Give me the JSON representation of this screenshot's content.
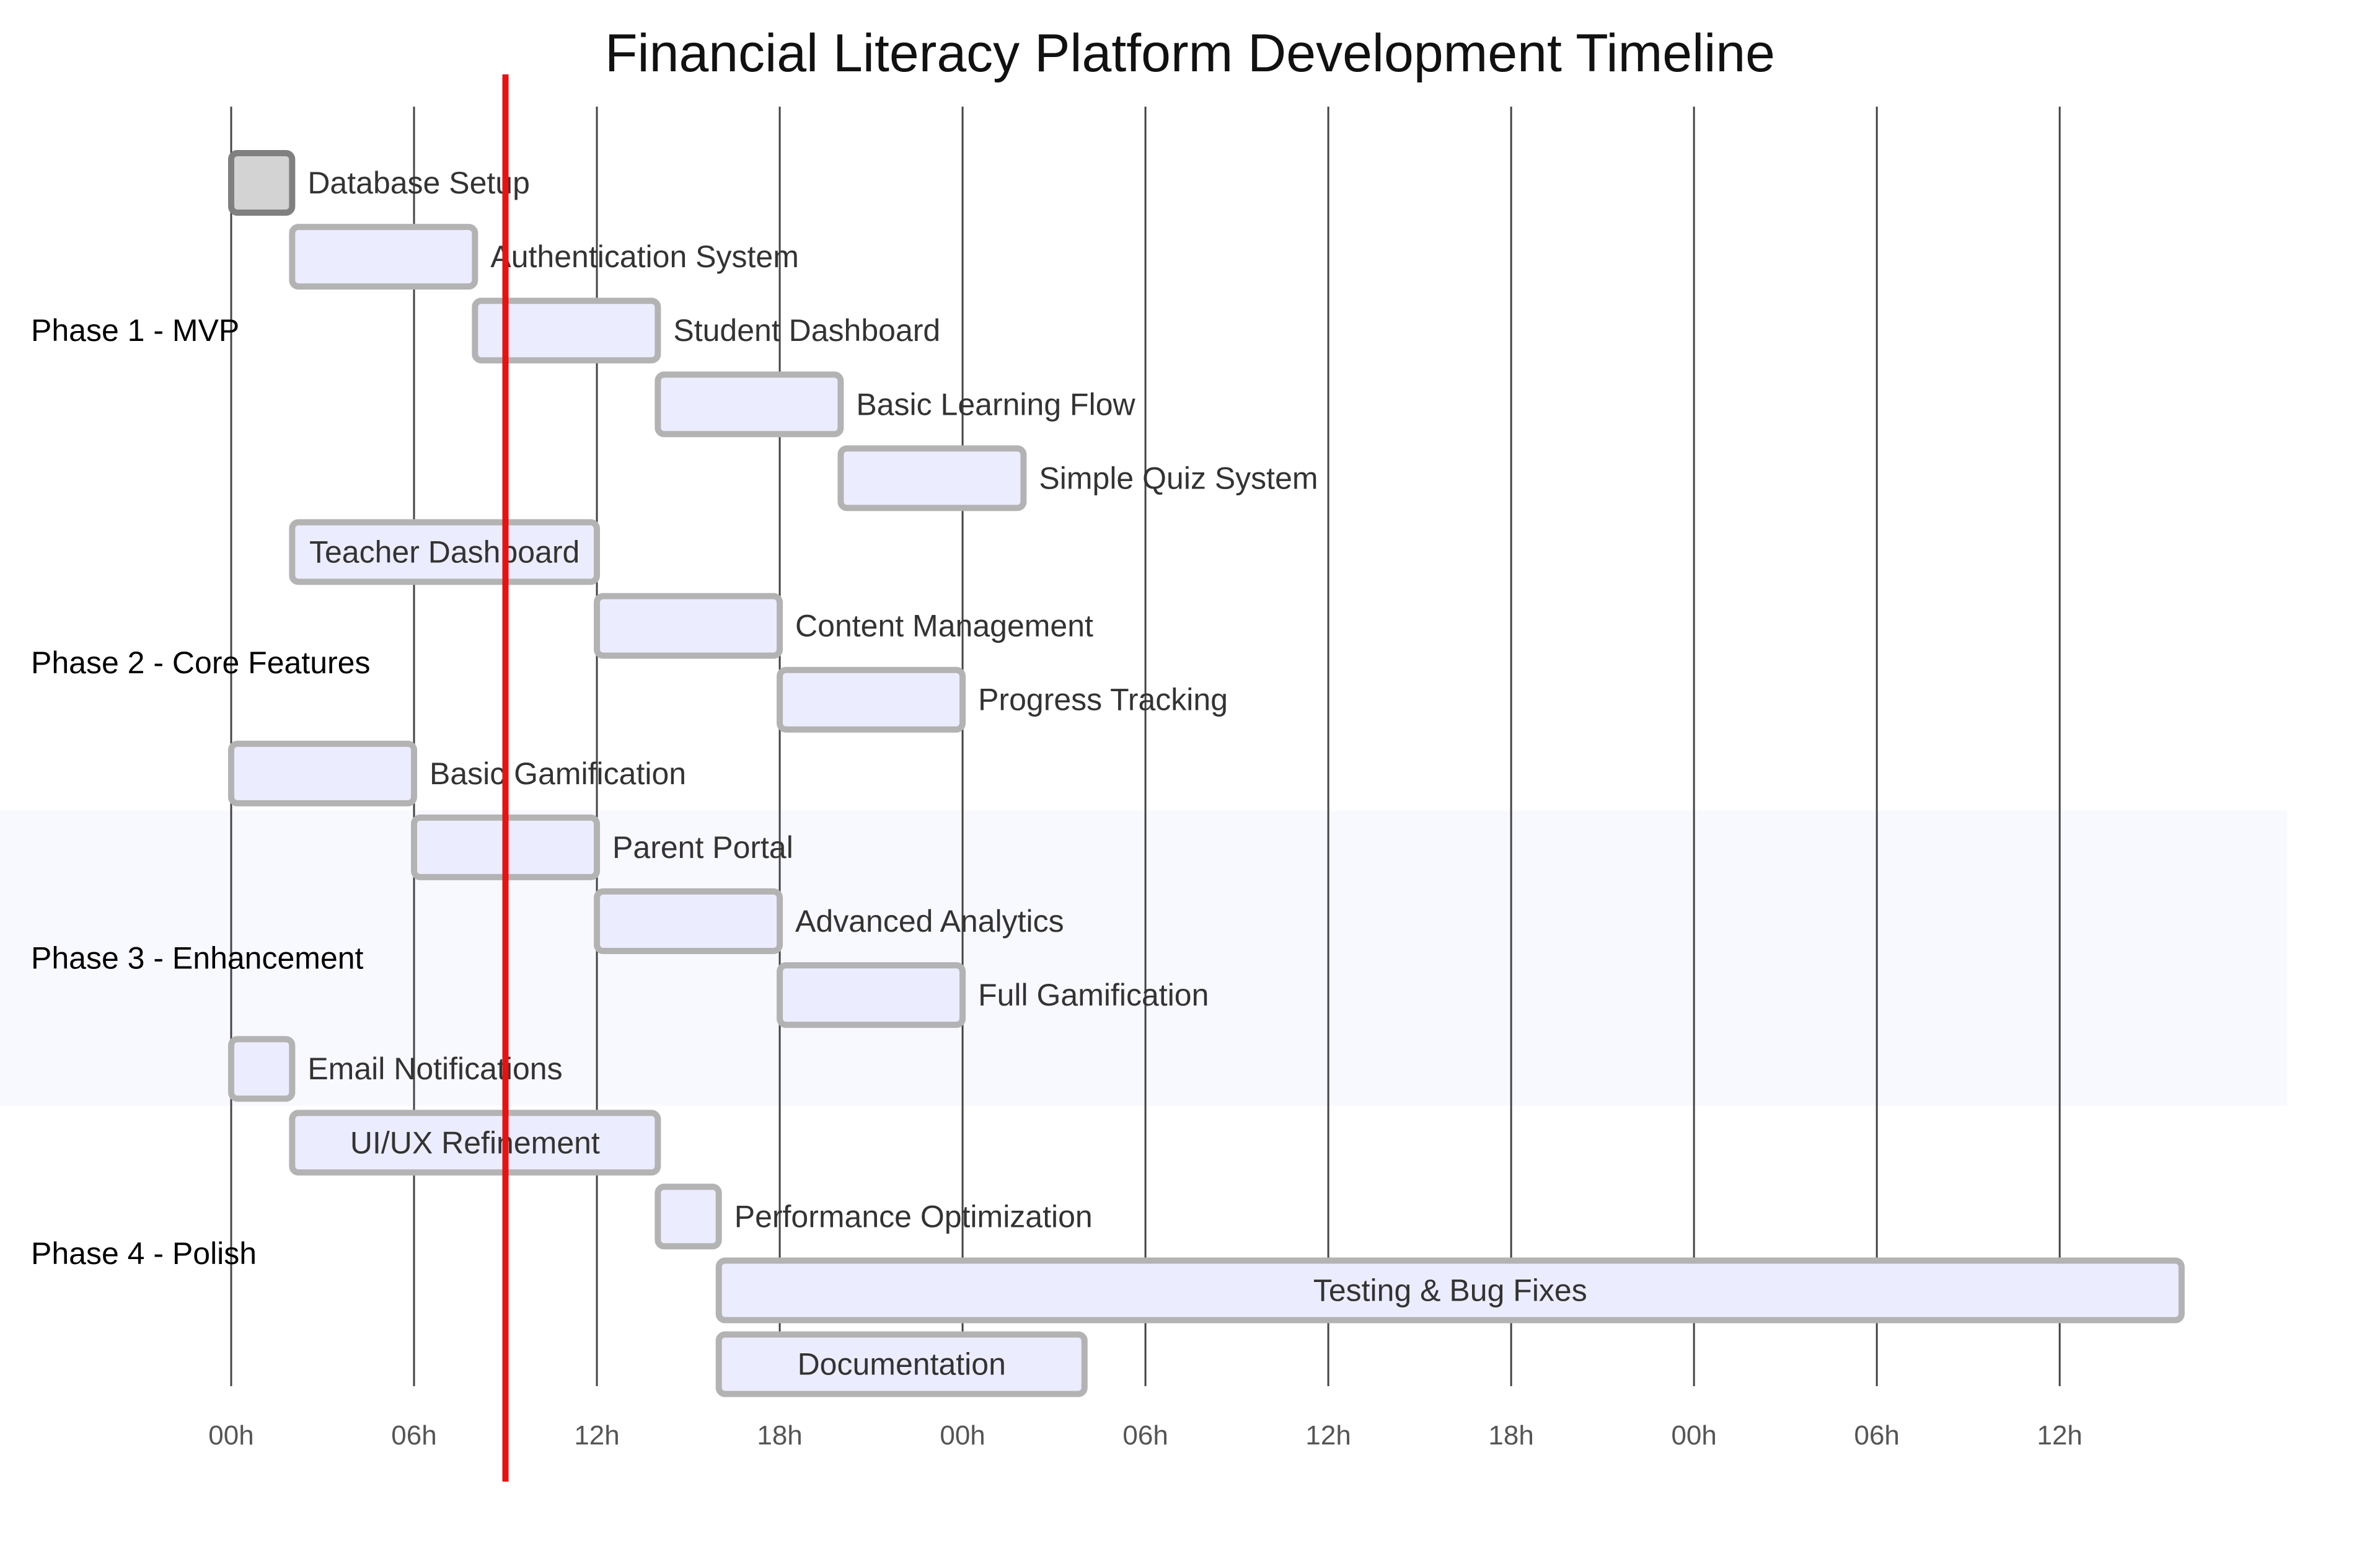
{
  "chart_data": {
    "type": "gantt",
    "title": "Financial Literacy Platform Development Timeline",
    "x_unit": "hours",
    "x_range": [
      0,
      64
    ],
    "x_ticks": [
      {
        "value": 0,
        "label": "00h"
      },
      {
        "value": 6,
        "label": "06h"
      },
      {
        "value": 12,
        "label": "12h"
      },
      {
        "value": 18,
        "label": "18h"
      },
      {
        "value": 24,
        "label": "00h"
      },
      {
        "value": 30,
        "label": "06h"
      },
      {
        "value": 36,
        "label": "12h"
      },
      {
        "value": 42,
        "label": "18h"
      },
      {
        "value": 48,
        "label": "00h"
      },
      {
        "value": 54,
        "label": "06h"
      },
      {
        "value": 60,
        "label": "12h"
      }
    ],
    "today_marker": 9,
    "sections": [
      {
        "name": "Phase 1 - MVP",
        "highlight": false,
        "tasks": [
          {
            "name": "Database Setup",
            "start": 0,
            "end": 2,
            "status": "done"
          },
          {
            "name": "Authentication System",
            "start": 2,
            "end": 8,
            "status": "pending"
          },
          {
            "name": "Student Dashboard",
            "start": 8,
            "end": 14,
            "status": "pending"
          },
          {
            "name": "Basic Learning Flow",
            "start": 14,
            "end": 20,
            "status": "pending"
          },
          {
            "name": "Simple Quiz System",
            "start": 20,
            "end": 26,
            "status": "pending"
          }
        ]
      },
      {
        "name": "Phase 2 - Core Features",
        "highlight": false,
        "tasks": [
          {
            "name": "Teacher Dashboard",
            "start": 2,
            "end": 12,
            "status": "pending"
          },
          {
            "name": "Content Management",
            "start": 12,
            "end": 18,
            "status": "pending"
          },
          {
            "name": "Progress Tracking",
            "start": 18,
            "end": 24,
            "status": "pending"
          },
          {
            "name": "Basic Gamification",
            "start": 0,
            "end": 6,
            "status": "pending"
          }
        ]
      },
      {
        "name": "Phase 3 - Enhancement",
        "highlight": true,
        "tasks": [
          {
            "name": "Parent Portal",
            "start": 6,
            "end": 12,
            "status": "pending"
          },
          {
            "name": "Advanced Analytics",
            "start": 12,
            "end": 18,
            "status": "pending"
          },
          {
            "name": "Full Gamification",
            "start": 18,
            "end": 24,
            "status": "pending"
          },
          {
            "name": "Email Notifications",
            "start": 0,
            "end": 2,
            "status": "pending"
          }
        ]
      },
      {
        "name": "Phase 4 - Polish",
        "highlight": false,
        "tasks": [
          {
            "name": "UI/UX Refinement",
            "start": 2,
            "end": 14,
            "status": "pending"
          },
          {
            "name": "Performance Optimization",
            "start": 14,
            "end": 16,
            "status": "pending"
          },
          {
            "name": "Testing & Bug Fixes",
            "start": 16,
            "end": 64,
            "status": "pending"
          },
          {
            "name": "Documentation",
            "start": 16,
            "end": 28,
            "status": "pending"
          }
        ]
      }
    ],
    "colors": {
      "task_fill": "#ececff",
      "task_stroke": "#b3b3b3",
      "done_fill": "#d3d3d3",
      "done_stroke": "#808080",
      "today_line": "#e31414",
      "grid_line": "#444444",
      "section_highlight": "#f8f8ff"
    }
  }
}
